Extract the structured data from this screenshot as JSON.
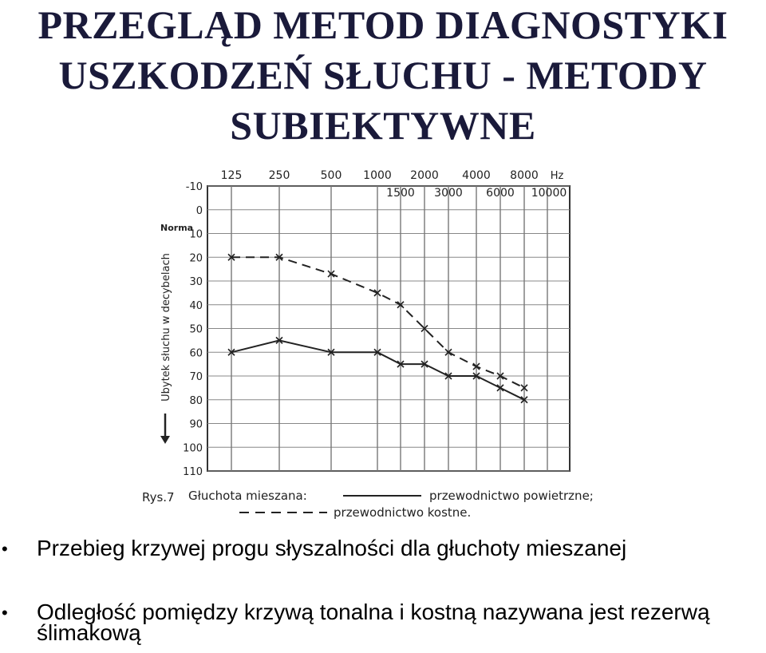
{
  "slide": {
    "title_lines": [
      "PRZEGLĄD METOD DIAGNOSTYKI",
      "USZKODZEŃ SŁUCHU - METODY",
      "SUBIEKTYWNE"
    ],
    "bullets": [
      "Przebieg krzywej progu słyszalności dla głuchoty mieszanej",
      "Odległość pomiędzy krzywą tonalna i kostną nazywana jest rezerwą",
      "ślimakową"
    ]
  },
  "chart_data": {
    "type": "line",
    "x_top_labels": [
      "125",
      "250",
      "500",
      "1000",
      "2000",
      "4000",
      "8000"
    ],
    "x_unit": "Hz",
    "x_bottom_labels": [
      "1500",
      "3000",
      "6000",
      "10000"
    ],
    "y_ticks": [
      "-10",
      "0",
      "10",
      "20",
      "30",
      "40",
      "50",
      "60",
      "70",
      "80",
      "90",
      "100",
      "110"
    ],
    "y_norm_label": "Norma",
    "ylabel": "Ubytek słuchu w decybelach",
    "ylim": [
      -10,
      110
    ],
    "series": [
      {
        "style": "solid",
        "x": [
          125,
          250,
          500,
          1000,
          1500,
          2000,
          3000,
          4000,
          6000,
          8000
        ],
        "values": [
          60,
          55,
          60,
          60,
          65,
          65,
          70,
          70,
          75,
          80
        ]
      },
      {
        "style": "dashed",
        "x": [
          125,
          250,
          500,
          1000,
          1500,
          2000,
          3000,
          4000,
          6000,
          8000
        ],
        "values": [
          20,
          20,
          27,
          35,
          40,
          50,
          60,
          66,
          70,
          75
        ]
      }
    ],
    "caption_prefix": "Rys.7",
    "caption_title": "Głuchota mieszana:",
    "legend": [
      {
        "style": "solid",
        "label": "przewodnictwo powietrzne;"
      },
      {
        "style": "dashed",
        "label": "przewodnictwo kostne."
      }
    ]
  }
}
